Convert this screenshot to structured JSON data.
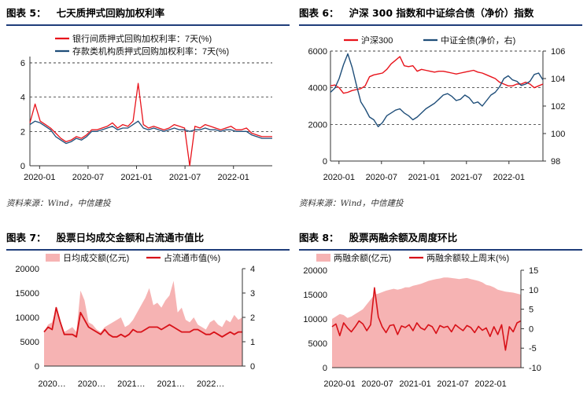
{
  "panels": [
    {
      "id": "p5",
      "label": "图表 5：",
      "title": "七天质押式回购加权利率",
      "source": "资料来源：Wind，中信建投",
      "chart_data": {
        "type": "line",
        "x_ticks": [
          "2020-01",
          "2020-07",
          "2021-01",
          "2021-07",
          "2022-01"
        ],
        "y_ticks": [
          0,
          2,
          4,
          6
        ],
        "ylim": [
          0,
          6
        ],
        "grid": "dashed horizontal",
        "legend_position": "top-right",
        "series": [
          {
            "name": "银行间质押式回购加权利率：7天(%)",
            "color": "#e8131b",
            "values": [
              2.5,
              3.6,
              2.6,
              2.4,
              2.2,
              1.9,
              1.6,
              1.4,
              1.5,
              1.7,
              1.6,
              1.8,
              2.1,
              2.1,
              2.2,
              2.3,
              2.5,
              2.2,
              2.4,
              2.3,
              2.6,
              4.8,
              2.4,
              2.2,
              2.3,
              2.2,
              2.1,
              2.2,
              2.4,
              2.3,
              2.2,
              0.0,
              2.3,
              2.2,
              2.4,
              2.3,
              2.2,
              2.1,
              2.2,
              2.3,
              2.1,
              2.1,
              2.2,
              1.9,
              1.8,
              1.7,
              1.7,
              1.7
            ]
          },
          {
            "name": "存款类机构质押式回购加权利率：7天(%)",
            "color": "#1f4e79",
            "values": [
              2.4,
              2.6,
              2.5,
              2.3,
              2.1,
              1.7,
              1.5,
              1.3,
              1.4,
              1.6,
              1.5,
              1.7,
              2.0,
              2.0,
              2.1,
              2.2,
              2.3,
              2.1,
              2.2,
              2.2,
              2.4,
              2.6,
              2.2,
              2.1,
              2.2,
              2.1,
              2.0,
              2.1,
              2.2,
              2.1,
              2.1,
              2.0,
              2.1,
              2.1,
              2.2,
              2.1,
              2.1,
              2.0,
              2.1,
              2.1,
              2.0,
              2.0,
              2.0,
              1.8,
              1.7,
              1.6,
              1.6,
              1.6
            ]
          }
        ]
      }
    },
    {
      "id": "p6",
      "label": "图表 6：",
      "title": "沪深 300 指数和中证综合债（净价）指数",
      "source": "资料来源：Wind，中信建投",
      "chart_data": {
        "type": "line",
        "x_ticks": [
          "2020-01",
          "2020-07",
          "2021-01",
          "2021-07",
          "2022-01"
        ],
        "y_ticks_left": [
          0,
          2000,
          4000,
          6000
        ],
        "ylim_left": [
          0,
          6000
        ],
        "y_ticks_right": [
          98,
          100,
          102,
          104,
          106
        ],
        "ylim_right": [
          98,
          106
        ],
        "grid": "dashed horizontal",
        "legend_position": "top",
        "series": [
          {
            "name": "沪深300",
            "axis": "left",
            "color": "#e8131b",
            "values": [
              4100,
              4150,
              4000,
              3700,
              3750,
              3850,
              3900,
              3950,
              4100,
              4600,
              4700,
              4750,
              4800,
              5000,
              5300,
              5500,
              5700,
              5200,
              5150,
              5200,
              4900,
              5000,
              4950,
              4900,
              4850,
              4900,
              4900,
              4850,
              4800,
              4750,
              4800,
              4850,
              4900,
              4950,
              4850,
              4800,
              4700,
              4600,
              4500,
              4300,
              4200,
              4100,
              4100,
              4200,
              4200,
              4300,
              4200,
              4000,
              4100,
              4200
            ]
          },
          {
            "name": "中证全债(净价，右)",
            "axis": "right",
            "color": "#1f4e79",
            "values": [
              103.0,
              103.3,
              104.0,
              105.0,
              105.8,
              104.8,
              103.5,
              102.3,
              101.8,
              101.2,
              101.0,
              100.5,
              100.8,
              101.3,
              101.5,
              101.7,
              101.8,
              101.5,
              101.3,
              101.0,
              101.2,
              101.5,
              101.8,
              102.0,
              102.2,
              102.5,
              102.8,
              102.9,
              102.7,
              102.4,
              102.5,
              102.8,
              102.6,
              102.2,
              102.3,
              102.0,
              102.4,
              102.8,
              103.0,
              103.4,
              104.0,
              104.2,
              103.9,
              103.8,
              103.5,
              103.6,
              103.8,
              104.3,
              104.4,
              103.9
            ]
          }
        ]
      }
    },
    {
      "id": "p7",
      "label": "图表 7：",
      "title": "股票日均成交金额和占流通市值比",
      "source": "",
      "chart_data": {
        "type": "area",
        "x_ticks": [
          "2020…",
          "2020…",
          "2021…",
          "2021…",
          "2022…"
        ],
        "y_ticks_left": [
          0,
          5000,
          10000,
          15000,
          20000
        ],
        "ylim_left": [
          0,
          20000
        ],
        "y_ticks_right": [
          0,
          1,
          2,
          3,
          4
        ],
        "ylim_right": [
          0,
          4
        ],
        "legend_position": "top",
        "series": [
          {
            "name": "日均成交额(亿元)",
            "axis": "left",
            "color": "#f6b3b3",
            "values": [
              7000,
              8500,
              9000,
              12000,
              8500,
              7000,
              7500,
              8000,
              7000,
              15500,
              13500,
              9000,
              8500,
              7500,
              7000,
              8000,
              8500,
              9000,
              9500,
              10000,
              8000,
              8500,
              9500,
              11000,
              12500,
              14000,
              16000,
              12500,
              13000,
              12000,
              13500,
              14500,
              17500,
              11000,
              12000,
              9500,
              9000,
              10000,
              8500,
              8000,
              7500,
              9000,
              9500,
              8500,
              8000,
              9500,
              9000,
              10500,
              9500,
              10000
            ]
          },
          {
            "name": "占流通市值(%)",
            "axis": "right",
            "color": "#d81118",
            "values": [
              1.4,
              1.6,
              1.5,
              2.4,
              1.8,
              1.3,
              1.3,
              1.3,
              1.2,
              2.2,
              1.9,
              1.6,
              1.5,
              1.4,
              1.3,
              1.5,
              1.3,
              1.2,
              1.2,
              1.3,
              1.2,
              1.3,
              1.5,
              1.4,
              1.4,
              1.5,
              1.6,
              1.6,
              1.6,
              1.5,
              1.6,
              1.7,
              1.6,
              1.5,
              1.4,
              1.4,
              1.4,
              1.5,
              1.5,
              1.4,
              1.3,
              1.3,
              1.4,
              1.3,
              1.2,
              1.3,
              1.4,
              1.3,
              1.4,
              1.4
            ]
          }
        ]
      }
    },
    {
      "id": "p8",
      "label": "图表 8：",
      "title": "股票两融余额及周度环比",
      "source": "",
      "chart_data": {
        "type": "area",
        "x_ticks": [
          "2020-01",
          "2020-07",
          "2021-01",
          "2021-07",
          "2022-01"
        ],
        "y_ticks_left": [
          0,
          5000,
          10000,
          15000,
          20000
        ],
        "ylim_left": [
          0,
          20000
        ],
        "y_ticks_right": [
          -10,
          -5,
          0,
          5,
          10,
          15
        ],
        "ylim_right": [
          -10,
          15
        ],
        "legend_position": "top",
        "series": [
          {
            "name": "两融余额(亿元)",
            "axis": "left",
            "color": "#f6b3b3",
            "values": [
              10000,
              10500,
              11000,
              10800,
              10200,
              10500,
              11000,
              11500,
              12000,
              13000,
              14000,
              15000,
              15200,
              15500,
              15800,
              16000,
              16200,
              16000,
              16200,
              16500,
              16500,
              16800,
              17000,
              17200,
              17500,
              17800,
              18000,
              18200,
              18300,
              18500,
              18500,
              18400,
              18300,
              18200,
              18300,
              18400,
              18200,
              18000,
              17800,
              17500,
              17000,
              16800,
              16500,
              16000,
              15800,
              15600,
              15500,
              15400,
              15200,
              15000
            ]
          },
          {
            "name": "两融余额较上周末(%)",
            "axis": "right",
            "color": "#d81118",
            "values": [
              0.5,
              1.2,
              -1.8,
              1.5,
              0.2,
              -0.8,
              0.5,
              2.0,
              1.2,
              -0.5,
              1.0,
              10.5,
              3.0,
              0.5,
              -1.0,
              0.8,
              1.0,
              -1.5,
              0.7,
              0.3,
              1.0,
              -0.5,
              1.5,
              0.2,
              -0.3,
              1.0,
              0.5,
              -1.2,
              0.8,
              0.3,
              0.6,
              -0.8,
              1.0,
              0.2,
              -0.5,
              0.8,
              0.3,
              -1.0,
              0.6,
              -0.4,
              0.2,
              -2.0,
              0.5,
              -1.5,
              1.0,
              -5.5,
              0.5,
              -0.8,
              1.5,
              2.0
            ]
          }
        ]
      }
    }
  ]
}
